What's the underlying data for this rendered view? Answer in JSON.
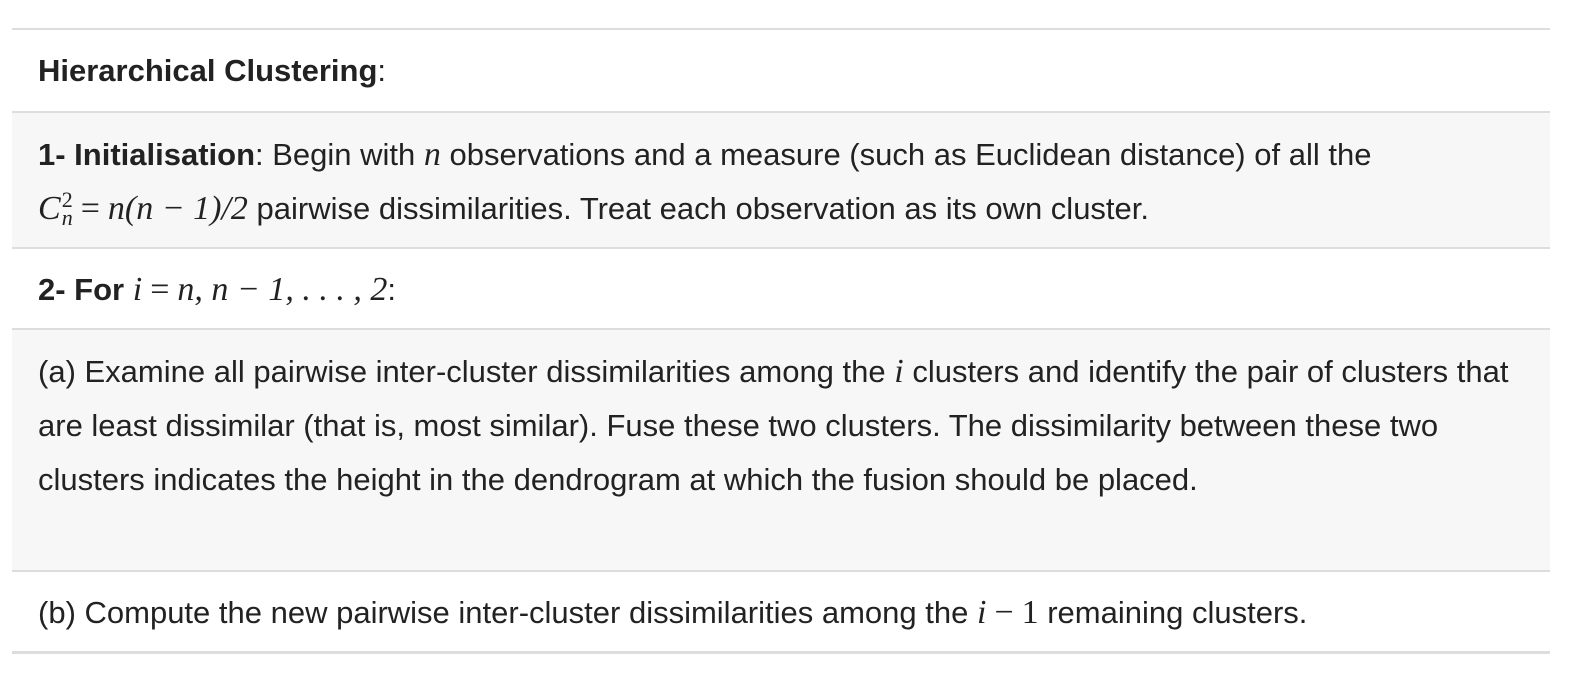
{
  "title": {
    "heading": "Hierarchical Clustering",
    "colon": ":"
  },
  "step1": {
    "label": "1- Initialisation",
    "text_a": ": Begin with ",
    "var_n": "n",
    "text_b": " observations and a measure (such as Euclidean distance) of all the",
    "formula_C": "C",
    "formula_sup": "2",
    "formula_sub": "n",
    "formula_eq": "=",
    "formula_rhs": "n(n − 1)/2",
    "text_c": " pairwise dissimilarities. Treat each observation as its own cluster."
  },
  "step2": {
    "label": "2- For",
    "var_i": "i",
    "eq": "=",
    "range": "n, n − 1, . . . , 2",
    "colon": ":"
  },
  "step2a": {
    "text_a": "(a) Examine all pairwise inter-cluster dissimilarities among the ",
    "var_i": "i",
    "text_b": " clusters and identify the pair of clusters that are least dissimilar (that is, most similar). Fuse these two clusters. The dissimilarity between these two clusters indicates the height in the dendrogram at which the fusion should be placed."
  },
  "step2b": {
    "text_a": "(b) Compute the new pairwise inter-cluster dissimilarities among the ",
    "math_i": "i",
    "math_minus": "−",
    "math_one": "1",
    "text_b": " remaining clusters."
  }
}
